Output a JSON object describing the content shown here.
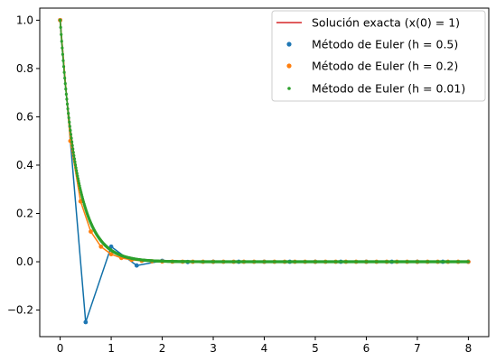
{
  "chart_data": {
    "type": "line",
    "title": "",
    "xlabel": "",
    "ylabel": "",
    "xlim": [
      -0.4,
      8.4
    ],
    "ylim": [
      -0.31,
      1.05
    ],
    "grid": false,
    "legend_placement": "top-right",
    "x_ticks": [
      "0",
      "1",
      "2",
      "3",
      "4",
      "5",
      "6",
      "7",
      "8"
    ],
    "y_ticks": [
      "−0.2",
      "0.0",
      "0.2",
      "0.4",
      "0.6",
      "0.8",
      "1.0"
    ],
    "exact": {
      "name": "Solución exacta (x(0) = 1)",
      "color": "#d62728",
      "decay_rate": 3,
      "x_range": [
        0,
        8
      ]
    },
    "series": [
      {
        "name": "Método de Euler (h = 0.5)",
        "color": "#1f77b4",
        "line_color": "#0f6fa8",
        "step": 0.5,
        "x": [
          0,
          0.5,
          1,
          1.5,
          2,
          2.5,
          3,
          3.5,
          4,
          4.5,
          5,
          5.5,
          6,
          6.5,
          7,
          7.5,
          8
        ],
        "values": [
          1,
          -0.25,
          0.0625,
          -0.0156,
          0.0039,
          -0.001,
          0.0002,
          0,
          0,
          0,
          0,
          0,
          0,
          0,
          0,
          0,
          0
        ]
      },
      {
        "name": "Método de Euler (h = 0.2)",
        "color": "#ff7f0e",
        "line_color": "#ff7f0e",
        "step": 0.2,
        "x": [
          0,
          0.2,
          0.4,
          0.6,
          0.8,
          1,
          1.2,
          1.4,
          1.6,
          1.8,
          2,
          2.2,
          2.4,
          2.6,
          2.8,
          3,
          3.2,
          3.4,
          3.6,
          3.8,
          4,
          4.2,
          4.4,
          4.6,
          4.8,
          5,
          5.2,
          5.4,
          5.6,
          5.8,
          6,
          6.2,
          6.4,
          6.6,
          6.8,
          7,
          7.2,
          7.4,
          7.6,
          7.8,
          8
        ],
        "values": [
          1,
          0.5,
          0.25,
          0.125,
          0.0625,
          0.0313,
          0.0156,
          0.0078,
          0.0039,
          0.002,
          0.001,
          0.0005,
          0.0002,
          0.0001,
          0,
          0,
          0,
          0,
          0,
          0,
          0,
          0,
          0,
          0,
          0,
          0,
          0,
          0,
          0,
          0,
          0,
          0,
          0,
          0,
          0,
          0,
          0,
          0,
          0,
          0,
          0
        ]
      },
      {
        "name": "Método de Euler (h = 0.01)",
        "color": "#2ca02c",
        "line_color": "#2ca02c",
        "step": 0.01,
        "x_range": [
          0,
          8
        ],
        "growth_factor": 0.97
      }
    ]
  }
}
